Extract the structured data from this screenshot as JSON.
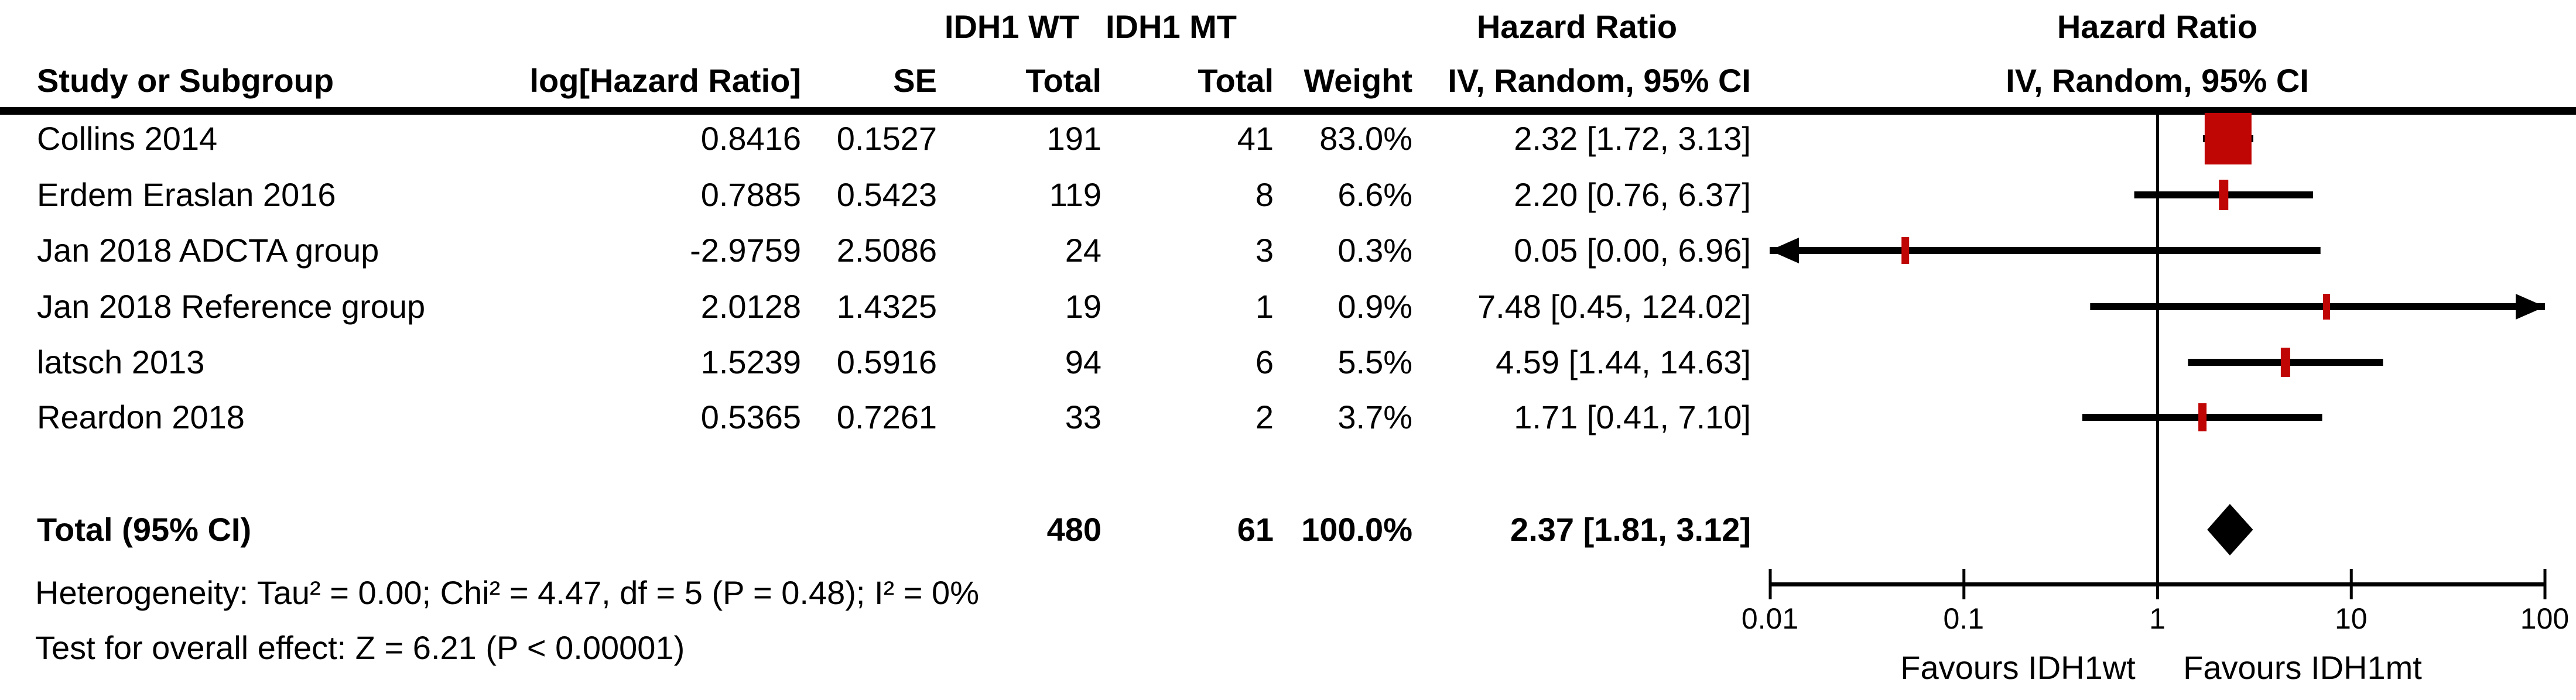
{
  "header": {
    "group1": "IDH1 WT",
    "group2": "IDH1 MT",
    "stat_col_title": "Hazard Ratio",
    "plot_title": "Hazard Ratio",
    "col_study": "Study or Subgroup",
    "col_loghr": "log[Hazard Ratio]",
    "col_se": "SE",
    "col_total_wt": "Total",
    "col_total_mt": "Total",
    "col_weight": "Weight",
    "col_ci": "IV, Random, 95% CI",
    "plot_col_ci": "IV, Random, 95% CI"
  },
  "table": {
    "rows": [
      {
        "cells": [
          "Collins 2014",
          "0.8416",
          "0.1527",
          "191",
          "41",
          "83.0%",
          "2.32 [1.72, 3.13]"
        ]
      },
      {
        "cells": [
          "Erdem Eraslan 2016",
          "0.7885",
          "0.5423",
          "119",
          "8",
          "6.6%",
          "2.20 [0.76, 6.37]"
        ]
      },
      {
        "cells": [
          "Jan 2018 ADCTA group",
          "-2.9759",
          "2.5086",
          "24",
          "3",
          "0.3%",
          "0.05 [0.00, 6.96]"
        ]
      },
      {
        "cells": [
          "Jan 2018 Reference group",
          "2.0128",
          "1.4325",
          "19",
          "1",
          "0.9%",
          "7.48 [0.45, 124.02]"
        ]
      },
      {
        "cells": [
          "latsch 2013",
          "1.5239",
          "0.5916",
          "94",
          "6",
          "5.5%",
          "4.59 [1.44, 14.63]"
        ]
      },
      {
        "cells": [
          "Reardon 2018",
          "0.5365",
          "0.7261",
          "33",
          "2",
          "3.7%",
          "1.71 [0.41, 7.10]"
        ]
      }
    ],
    "total_row": {
      "cells": [
        "Total (95% CI)",
        "",
        "",
        "480",
        "61",
        "100.0%",
        "2.37 [1.81, 3.12]"
      ]
    }
  },
  "footer": {
    "heterogeneity": "Heterogeneity: Tau² = 0.00; Chi² = 4.47, df = 5 (P = 0.48); I² = 0%",
    "overall_effect": "Test for overall effect: Z = 6.21 (P < 0.00001)"
  },
  "axis": {
    "tick_labels": [
      "0.01",
      "0.1",
      "1",
      "10",
      "100"
    ],
    "favours_left": "Favours IDH1wt",
    "favours_right": "Favours IDH1mt"
  },
  "colors": {
    "marker_red": "#c00505",
    "line_black": "#000000"
  },
  "chart_data": {
    "type": "scatter",
    "subtype": "forest-plot",
    "title": "Hazard Ratio",
    "effect_measure": "IV, Random, 95% CI",
    "x_scale": "log10",
    "x_range": [
      0.01,
      100
    ],
    "x_ticks": [
      0.01,
      0.1,
      1,
      10,
      100
    ],
    "null_line": 1,
    "favours_left": "Favours IDH1wt",
    "favours_right": "Favours IDH1mt",
    "studies": [
      {
        "name": "Collins 2014",
        "log_hr": 0.8416,
        "se": 0.1527,
        "total_wt": 191,
        "total_mt": 41,
        "weight_pct": 83.0,
        "hr": 2.32,
        "ci_low": 1.72,
        "ci_high": 3.13,
        "arrow": null,
        "marker_w": 80,
        "marker_h": 88
      },
      {
        "name": "Erdem Eraslan 2016",
        "log_hr": 0.7885,
        "se": 0.5423,
        "total_wt": 119,
        "total_mt": 8,
        "weight_pct": 6.6,
        "hr": 2.2,
        "ci_low": 0.76,
        "ci_high": 6.37,
        "arrow": null,
        "marker_w": 16,
        "marker_h": 52
      },
      {
        "name": "Jan 2018 ADCTA group",
        "log_hr": -2.9759,
        "se": 2.5086,
        "total_wt": 24,
        "total_mt": 3,
        "weight_pct": 0.3,
        "hr": 0.05,
        "ci_low": 0.0,
        "ci_high": 6.96,
        "arrow": "left",
        "marker_w": 13,
        "marker_h": 46
      },
      {
        "name": "Jan 2018 Reference group",
        "log_hr": 2.0128,
        "se": 1.4325,
        "total_wt": 19,
        "total_mt": 1,
        "weight_pct": 0.9,
        "hr": 7.48,
        "ci_low": 0.45,
        "ci_high": 124.02,
        "arrow": "right",
        "marker_w": 12,
        "marker_h": 44
      },
      {
        "name": "latsch 2013",
        "log_hr": 1.5239,
        "se": 0.5916,
        "total_wt": 94,
        "total_mt": 6,
        "weight_pct": 5.5,
        "hr": 4.59,
        "ci_low": 1.44,
        "ci_high": 14.63,
        "arrow": null,
        "marker_w": 16,
        "marker_h": 50
      },
      {
        "name": "Reardon 2018",
        "log_hr": 0.5365,
        "se": 0.7261,
        "total_wt": 33,
        "total_mt": 2,
        "weight_pct": 3.7,
        "hr": 1.71,
        "ci_low": 0.41,
        "ci_high": 7.1,
        "arrow": null,
        "marker_w": 14,
        "marker_h": 48
      }
    ],
    "total": {
      "label": "Total (95% CI)",
      "total_wt": 480,
      "total_mt": 61,
      "weight_pct": 100.0,
      "hr": 2.37,
      "ci_low": 1.81,
      "ci_high": 3.12
    },
    "heterogeneity": {
      "tau2": 0.0,
      "chi2": 4.47,
      "df": 5,
      "p": 0.48,
      "i2_pct": 0
    },
    "overall_effect": {
      "z": 6.21,
      "p": "< 0.00001"
    }
  }
}
